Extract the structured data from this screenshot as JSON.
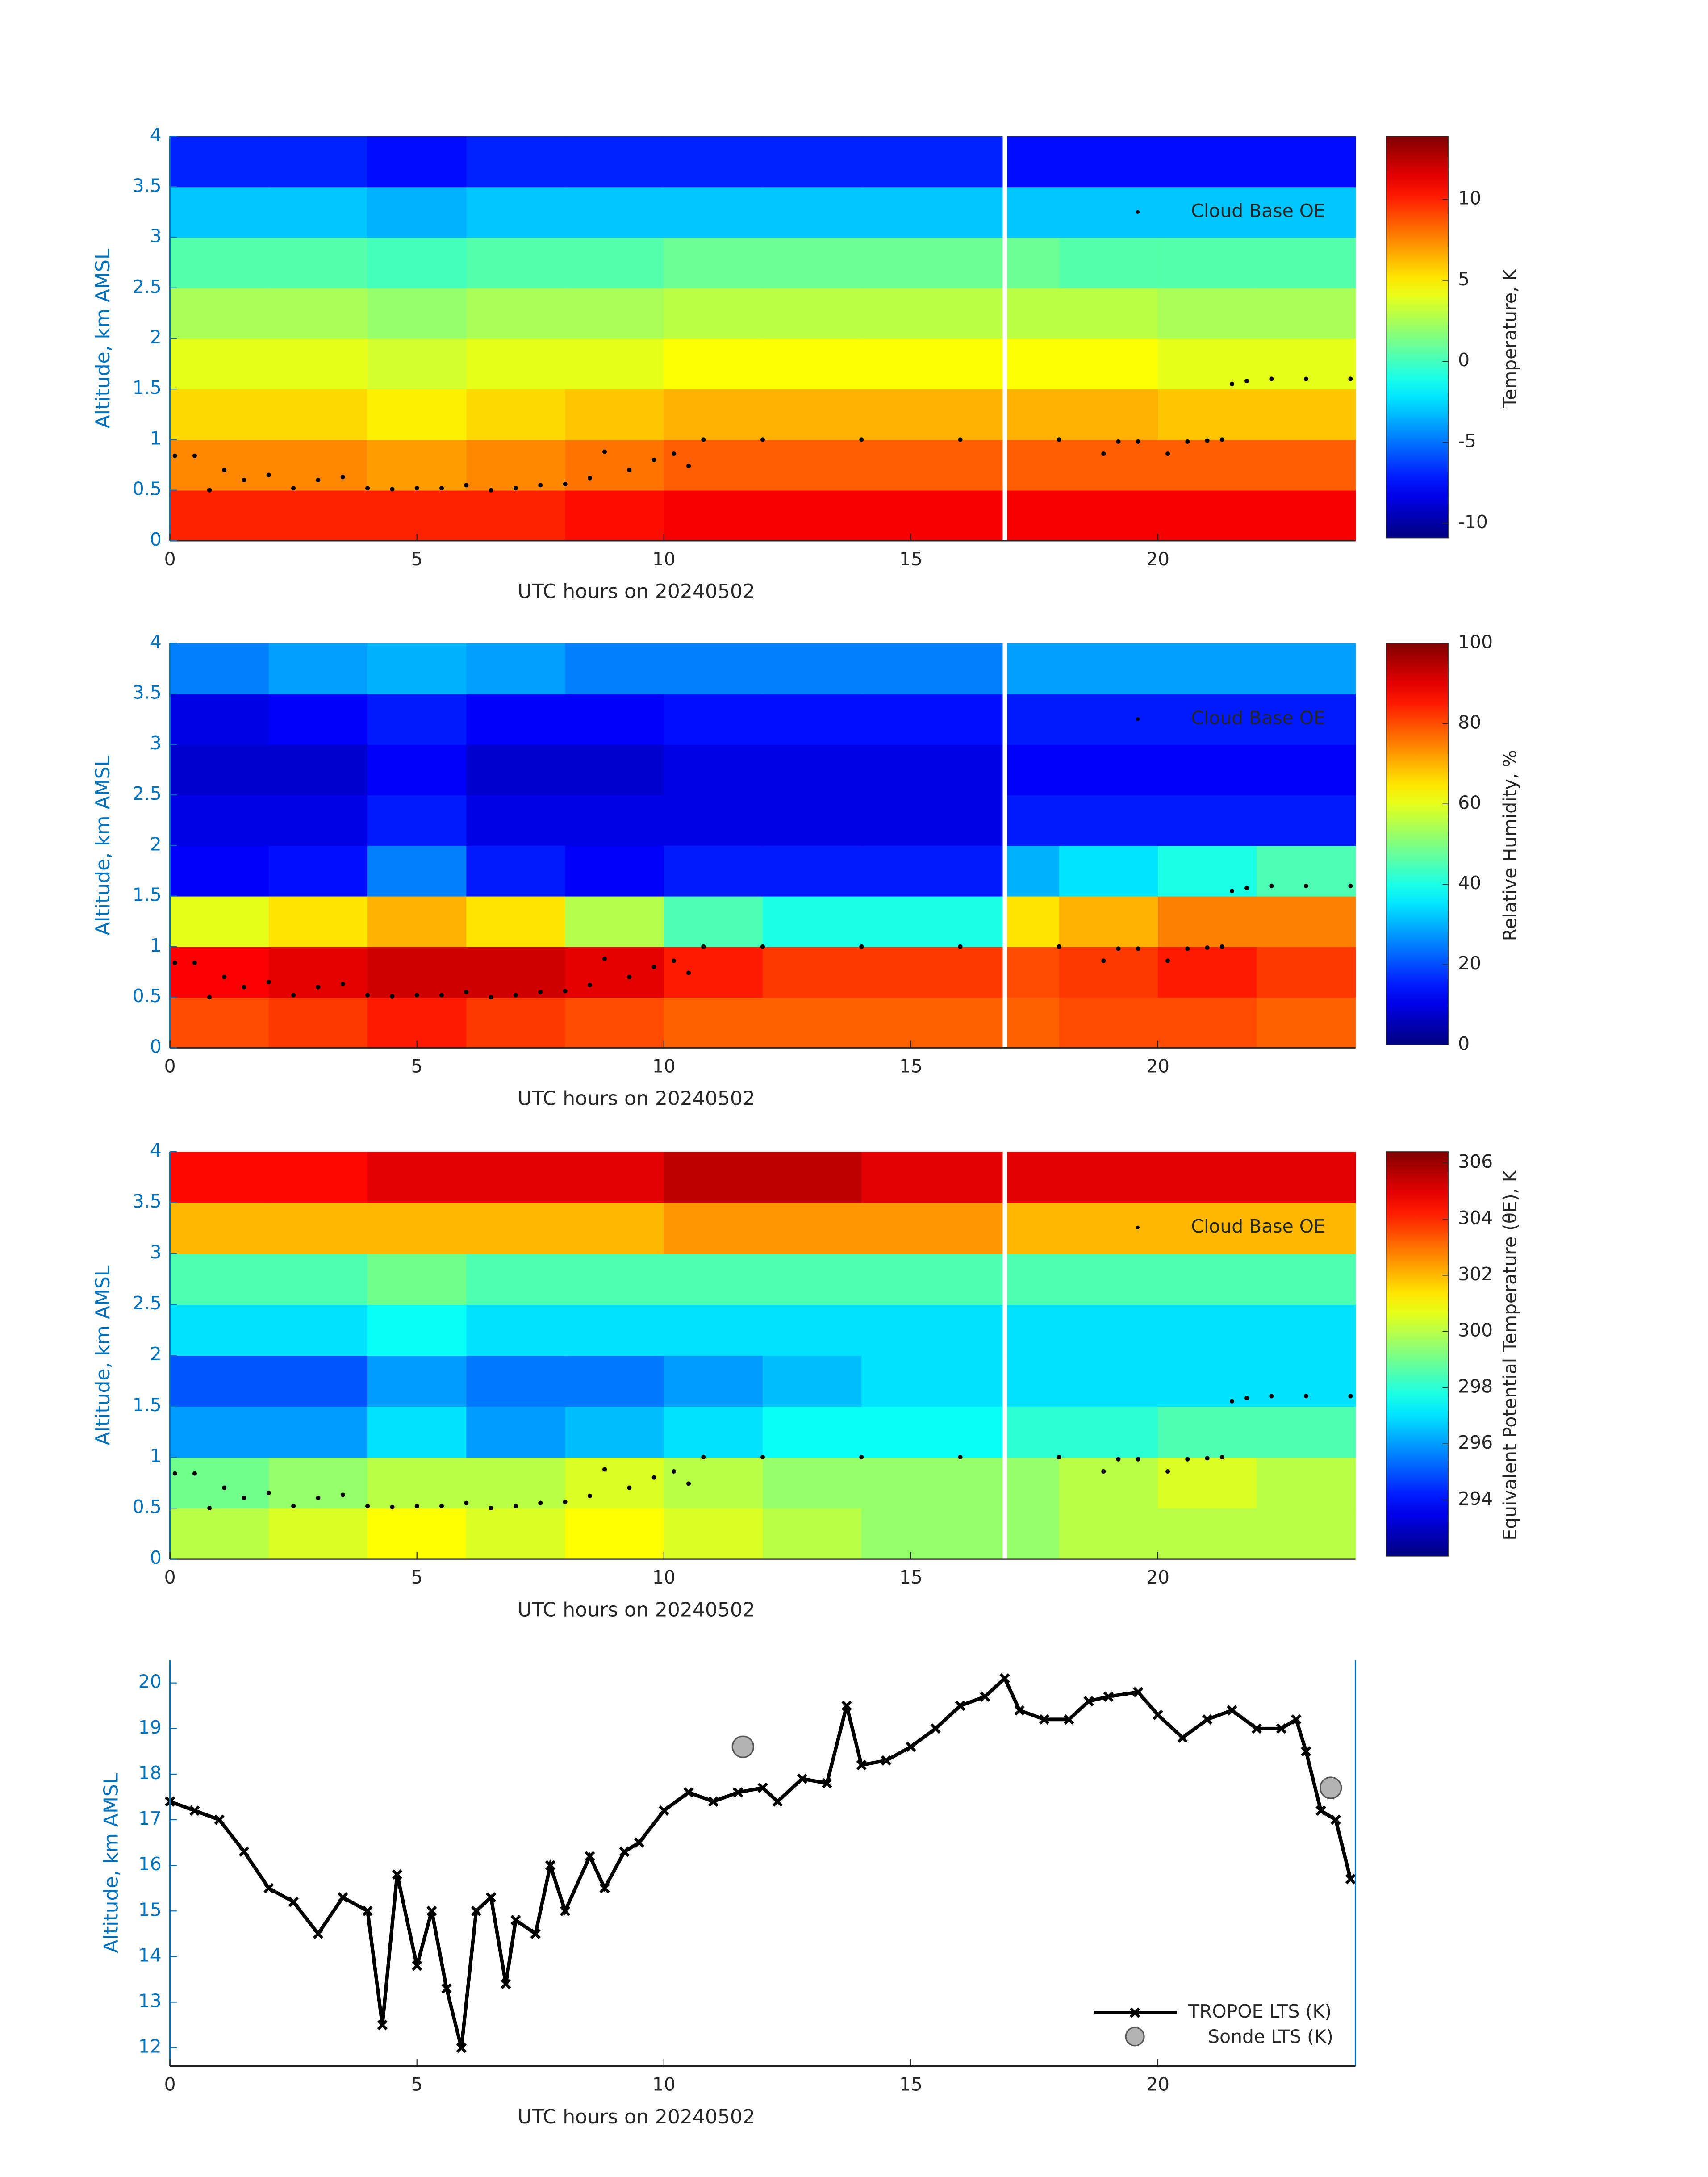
{
  "chart_data": [
    {
      "type": "heatmap",
      "x_label": "UTC hours on 20240502",
      "y_label": "Altitude, km AMSL",
      "colorbar_label": "Temperature, K",
      "xlim": [
        0,
        24
      ],
      "xticks": [
        0,
        5,
        10,
        15,
        20
      ],
      "ylim": [
        0,
        4
      ],
      "yticks": [
        0,
        0.5,
        1,
        1.5,
        2,
        2.5,
        3,
        3.5,
        4
      ],
      "colormap": "jet",
      "clim": [
        -10.9,
        13.9
      ],
      "cticks": [
        -10,
        -5,
        0,
        5,
        10
      ],
      "x_edges": [
        0,
        2,
        4,
        6,
        8,
        10,
        12,
        14,
        16.85,
        16.95,
        18,
        20,
        22,
        24
      ],
      "y_edges": [
        0,
        0.5,
        1,
        1.5,
        2,
        2.5,
        3,
        3.5,
        4
      ],
      "z": [
        [
          10,
          10,
          10,
          10,
          10.5,
          11,
          11,
          11,
          null,
          11,
          11,
          11,
          11
        ],
        [
          7.5,
          7.5,
          7,
          7.5,
          8,
          8.5,
          8.5,
          8.5,
          null,
          8.5,
          8.5,
          8.5,
          8.5
        ],
        [
          5.5,
          5.5,
          5,
          5.5,
          6,
          6.5,
          6.5,
          6.5,
          null,
          6.5,
          6.5,
          6,
          6
        ],
        [
          4,
          4,
          3.5,
          4,
          4,
          4.5,
          4.5,
          4.5,
          null,
          4.5,
          4.5,
          4,
          4
        ],
        [
          2.5,
          2.5,
          2,
          2.5,
          2.5,
          3,
          3,
          3,
          null,
          3,
          3,
          2.5,
          2.5
        ],
        [
          0.5,
          0.5,
          0,
          0.5,
          0.5,
          1,
          1,
          1,
          null,
          1,
          0.5,
          0.5,
          0.5
        ],
        [
          -3,
          -3,
          -3.5,
          -3,
          -3,
          -3,
          -3,
          -3,
          null,
          -3,
          -3,
          -3,
          -3
        ],
        [
          -7,
          -7,
          -7.5,
          -7,
          -7,
          -7,
          -7,
          -7,
          null,
          -7.5,
          -7.5,
          -7.5,
          -7.5
        ]
      ],
      "overlay": {
        "name": "Cloud Base OE",
        "color": "#000000",
        "x": [
          0.1,
          0.5,
          0.8,
          1.1,
          1.5,
          2,
          2.5,
          3,
          3.5,
          4,
          4.5,
          5,
          5.5,
          6,
          6.5,
          7,
          7.5,
          8,
          8.5,
          8.8,
          9.3,
          9.8,
          10.2,
          10.5,
          10.8,
          12,
          14,
          16,
          18,
          18.9,
          19.2,
          19.6,
          20.2,
          20.6,
          21,
          21.3,
          21.5,
          21.8,
          22.3,
          23,
          23.9
        ],
        "y": [
          0.84,
          0.84,
          0.5,
          0.7,
          0.6,
          0.65,
          0.52,
          0.6,
          0.63,
          0.52,
          0.51,
          0.52,
          0.52,
          0.55,
          0.5,
          0.52,
          0.55,
          0.56,
          0.62,
          0.88,
          0.7,
          0.8,
          0.86,
          0.74,
          1.0,
          1.0,
          1.0,
          1.0,
          1.0,
          0.86,
          0.98,
          0.98,
          0.86,
          0.98,
          0.99,
          1.0,
          1.55,
          1.58,
          1.6,
          1.6,
          1.6
        ]
      }
    },
    {
      "type": "heatmap",
      "x_label": "UTC hours on 20240502",
      "y_label": "Altitude, km AMSL",
      "colorbar_label": "Relative Humidity, %",
      "xlim": [
        0,
        24
      ],
      "xticks": [
        0,
        5,
        10,
        15,
        20
      ],
      "ylim": [
        0,
        4
      ],
      "yticks": [
        0,
        0.5,
        1,
        1.5,
        2,
        2.5,
        3,
        3.5,
        4
      ],
      "colormap": "jet",
      "clim": [
        0,
        100
      ],
      "cticks": [
        0,
        20,
        40,
        60,
        80,
        100
      ],
      "x_edges": [
        0,
        2,
        4,
        6,
        8,
        10,
        12,
        14,
        16.85,
        16.95,
        18,
        20,
        22,
        24
      ],
      "y_edges": [
        0,
        0.5,
        1,
        1.5,
        2,
        2.5,
        3,
        3.5,
        4
      ],
      "z": [
        [
          80,
          82,
          85,
          82,
          80,
          78,
          78,
          78,
          null,
          78,
          80,
          80,
          78
        ],
        [
          88,
          90,
          92,
          92,
          90,
          85,
          82,
          82,
          null,
          80,
          82,
          85,
          82
        ],
        [
          60,
          65,
          70,
          65,
          55,
          45,
          40,
          40,
          null,
          65,
          70,
          75,
          75
        ],
        [
          12,
          14,
          25,
          15,
          12,
          15,
          15,
          15,
          null,
          30,
          35,
          40,
          45
        ],
        [
          10,
          10,
          15,
          10,
          10,
          10,
          10,
          10,
          null,
          15,
          15,
          15,
          15
        ],
        [
          8,
          8,
          12,
          8,
          8,
          10,
          10,
          10,
          null,
          12,
          12,
          12,
          12
        ],
        [
          10,
          12,
          15,
          12,
          12,
          14,
          14,
          14,
          null,
          15,
          15,
          15,
          15
        ],
        [
          25,
          28,
          30,
          28,
          25,
          25,
          25,
          25,
          null,
          28,
          28,
          28,
          28
        ]
      ],
      "overlay": {
        "name": "Cloud Base OE",
        "color": "#000000",
        "x": [
          0.1,
          0.5,
          0.8,
          1.1,
          1.5,
          2,
          2.5,
          3,
          3.5,
          4,
          4.5,
          5,
          5.5,
          6,
          6.5,
          7,
          7.5,
          8,
          8.5,
          8.8,
          9.3,
          9.8,
          10.2,
          10.5,
          10.8,
          12,
          14,
          16,
          18,
          18.9,
          19.2,
          19.6,
          20.2,
          20.6,
          21,
          21.3,
          21.5,
          21.8,
          22.3,
          23,
          23.9
        ],
        "y": [
          0.84,
          0.84,
          0.5,
          0.7,
          0.6,
          0.65,
          0.52,
          0.6,
          0.63,
          0.52,
          0.51,
          0.52,
          0.52,
          0.55,
          0.5,
          0.52,
          0.55,
          0.56,
          0.62,
          0.88,
          0.7,
          0.8,
          0.86,
          0.74,
          1.0,
          1.0,
          1.0,
          1.0,
          1.0,
          0.86,
          0.98,
          0.98,
          0.86,
          0.98,
          0.99,
          1.0,
          1.55,
          1.58,
          1.6,
          1.6,
          1.6
        ]
      }
    },
    {
      "type": "heatmap",
      "x_label": "UTC hours on 20240502",
      "y_label": "Altitude, km AMSL",
      "colorbar_label": "Equivalent Potential Temperature (θE), K",
      "xlim": [
        0,
        24
      ],
      "xticks": [
        0,
        5,
        10,
        15,
        20
      ],
      "ylim": [
        0,
        4
      ],
      "yticks": [
        0,
        0.5,
        1,
        1.5,
        2,
        2.5,
        3,
        3.5,
        4
      ],
      "colormap": "jet",
      "clim": [
        292,
        306.4
      ],
      "cticks": [
        294,
        296,
        298,
        300,
        302,
        304,
        306
      ],
      "x_edges": [
        0,
        2,
        4,
        6,
        8,
        10,
        12,
        14,
        16.85,
        16.95,
        18,
        20,
        22,
        24
      ],
      "y_edges": [
        0,
        0.5,
        1,
        1.5,
        2,
        2.5,
        3,
        3.5,
        4
      ],
      "z": [
        [
          300,
          300.5,
          301,
          300.5,
          301,
          300.5,
          300,
          299.5,
          null,
          299.5,
          300,
          300,
          300
        ],
        [
          299,
          299.5,
          300,
          300,
          300.5,
          300,
          299.5,
          299.5,
          null,
          299.5,
          300,
          300.5,
          300
        ],
        [
          296,
          296,
          297,
          296,
          296.5,
          297,
          297.5,
          297.5,
          null,
          298,
          298,
          298.5,
          298.5
        ],
        [
          295,
          295,
          296,
          295.5,
          295.5,
          296,
          296.5,
          297,
          null,
          297,
          297,
          297,
          297
        ],
        [
          297,
          297,
          297.5,
          297,
          297,
          297,
          297,
          297,
          null,
          297,
          297,
          297,
          297
        ],
        [
          298.5,
          298.5,
          299,
          298.5,
          298.5,
          298.5,
          298.5,
          298.5,
          null,
          298.5,
          298.5,
          298.5,
          298.5
        ],
        [
          302,
          302,
          302,
          302,
          302,
          302.5,
          302.5,
          302.5,
          null,
          302,
          302,
          302,
          302
        ],
        [
          304.5,
          304.5,
          305,
          305,
          305,
          305.5,
          305.5,
          305,
          null,
          305,
          305,
          305,
          305
        ]
      ],
      "overlay": {
        "name": "Cloud Base OE",
        "color": "#000000",
        "x": [
          0.1,
          0.5,
          0.8,
          1.1,
          1.5,
          2,
          2.5,
          3,
          3.5,
          4,
          4.5,
          5,
          5.5,
          6,
          6.5,
          7,
          7.5,
          8,
          8.5,
          8.8,
          9.3,
          9.8,
          10.2,
          10.5,
          10.8,
          12,
          14,
          16,
          18,
          18.9,
          19.2,
          19.6,
          20.2,
          20.6,
          21,
          21.3,
          21.5,
          21.8,
          22.3,
          23,
          23.9
        ],
        "y": [
          0.84,
          0.84,
          0.5,
          0.7,
          0.6,
          0.65,
          0.52,
          0.6,
          0.63,
          0.52,
          0.51,
          0.52,
          0.52,
          0.55,
          0.5,
          0.52,
          0.55,
          0.56,
          0.62,
          0.88,
          0.7,
          0.8,
          0.86,
          0.74,
          1.0,
          1.0,
          1.0,
          1.0,
          1.0,
          0.86,
          0.98,
          0.98,
          0.86,
          0.98,
          0.99,
          1.0,
          1.55,
          1.58,
          1.6,
          1.6,
          1.6
        ]
      }
    },
    {
      "type": "line",
      "x_label": "UTC hours on 20240502",
      "y_label": "Altitude, km AMSL",
      "xlim": [
        0,
        24
      ],
      "xticks": [
        0,
        5,
        10,
        15,
        20
      ],
      "ylim": [
        11.6,
        20.5
      ],
      "yticks": [
        12,
        13,
        14,
        15,
        16,
        17,
        18,
        19,
        20
      ],
      "legend": "lower right",
      "series": [
        {
          "name": "TROPOE LTS (K)",
          "color": "#000000",
          "marker": "x",
          "x": [
            0,
            0.5,
            1,
            1.5,
            2,
            2.5,
            3,
            3.5,
            4,
            4.3,
            4.6,
            5,
            5.3,
            5.6,
            5.9,
            6.2,
            6.5,
            6.8,
            7,
            7.4,
            7.7,
            8,
            8.5,
            8.8,
            9.2,
            9.5,
            10,
            10.5,
            11,
            11.5,
            12,
            12.3,
            12.8,
            13.3,
            13.7,
            14,
            14.5,
            15,
            15.5,
            16,
            16.5,
            16.9,
            17.2,
            17.7,
            18.2,
            18.6,
            19,
            19.6,
            20,
            20.5,
            21,
            21.5,
            22,
            22.5,
            22.8,
            23,
            23.3,
            23.6,
            23.9
          ],
          "values": [
            17.4,
            17.2,
            17,
            16.3,
            15.5,
            15.2,
            14.5,
            15.3,
            15,
            12.5,
            15.8,
            13.8,
            15,
            13.3,
            12,
            15,
            15.3,
            13.4,
            14.8,
            14.5,
            16,
            15,
            16.2,
            15.5,
            16.3,
            16.5,
            17.2,
            17.6,
            17.4,
            17.6,
            17.7,
            17.4,
            17.9,
            17.8,
            19.5,
            18.2,
            18.3,
            18.6,
            19,
            19.5,
            19.7,
            20.1,
            19.4,
            19.2,
            19.2,
            19.6,
            19.7,
            19.8,
            19.3,
            18.8,
            19.2,
            19.4,
            19,
            19,
            19.2,
            18.5,
            17.2,
            17,
            15.7
          ]
        },
        {
          "name": "Sonde LTS (K)",
          "color": "#b3b3b3",
          "marker": "circle",
          "x": [
            11.6,
            23.5
          ],
          "values": [
            18.6,
            17.7
          ]
        }
      ]
    }
  ]
}
